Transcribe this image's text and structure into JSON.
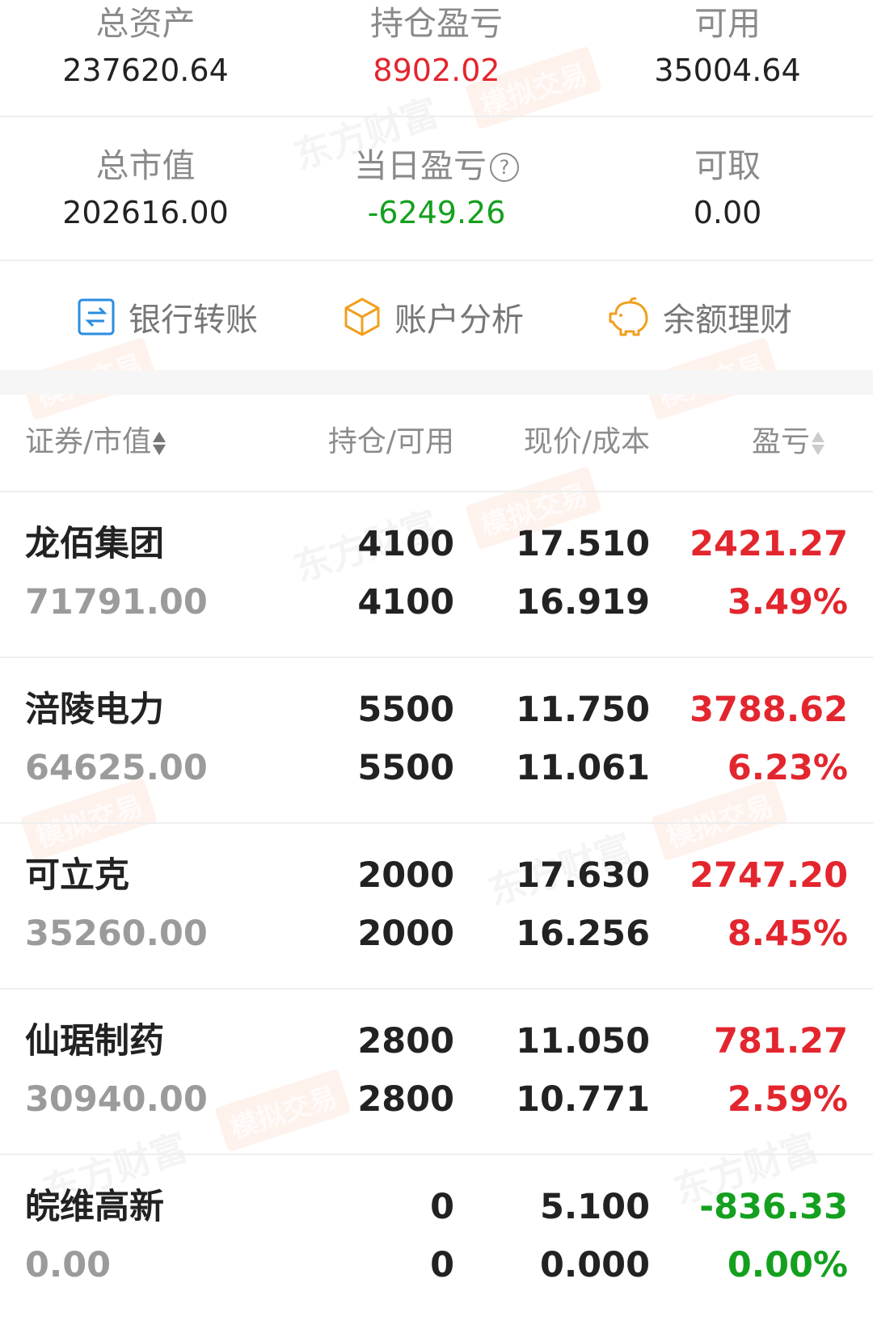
{
  "summary": {
    "total_assets": {
      "label": "总资产",
      "value": "237620.64"
    },
    "position_pnl": {
      "label": "持仓盈亏",
      "value": "8902.02"
    },
    "available": {
      "label": "可用",
      "value": "35004.64"
    },
    "market_value": {
      "label": "总市值",
      "value": "202616.00"
    },
    "daily_pnl": {
      "label": "当日盈亏",
      "value": "-6249.26",
      "help_icon": "question-circle-icon"
    },
    "withdrawable": {
      "label": "可取",
      "value": "0.00"
    }
  },
  "actions": [
    {
      "label": "银行转账",
      "icon": "bank-transfer-icon",
      "color": "#2a8ee0"
    },
    {
      "label": "账户分析",
      "icon": "cube-icon",
      "color": "#f0a020"
    },
    {
      "label": "余额理财",
      "icon": "piggy-bank-icon",
      "color": "#f0a020"
    }
  ],
  "table": {
    "headers": [
      "证券/市值",
      "持仓/可用",
      "现价/成本",
      "盈亏"
    ],
    "rows": [
      {
        "name": "龙佰集团",
        "market_value": "71791.00",
        "holding": "4100",
        "available": "4100",
        "price": "17.510",
        "cost": "16.919",
        "pnl": "2421.27",
        "pnl_pct": "3.49%",
        "trend": "up"
      },
      {
        "name": "涪陵电力",
        "market_value": "64625.00",
        "holding": "5500",
        "available": "5500",
        "price": "11.750",
        "cost": "11.061",
        "pnl": "3788.62",
        "pnl_pct": "6.23%",
        "trend": "up"
      },
      {
        "name": "可立克",
        "market_value": "35260.00",
        "holding": "2000",
        "available": "2000",
        "price": "17.630",
        "cost": "16.256",
        "pnl": "2747.20",
        "pnl_pct": "8.45%",
        "trend": "up"
      },
      {
        "name": "仙琚制药",
        "market_value": "30940.00",
        "holding": "2800",
        "available": "2800",
        "price": "11.050",
        "cost": "10.771",
        "pnl": "781.27",
        "pnl_pct": "2.59%",
        "trend": "up"
      },
      {
        "name": "皖维高新",
        "market_value": "0.00",
        "holding": "0",
        "available": "0",
        "price": "5.100",
        "cost": "0.000",
        "pnl": "-836.33",
        "pnl_pct": "0.00%",
        "trend": "down"
      }
    ]
  },
  "colors": {
    "up": "#e3262e",
    "down": "#14a01e"
  },
  "watermark": {
    "brand": "东方财富",
    "mode": "模拟交易"
  }
}
